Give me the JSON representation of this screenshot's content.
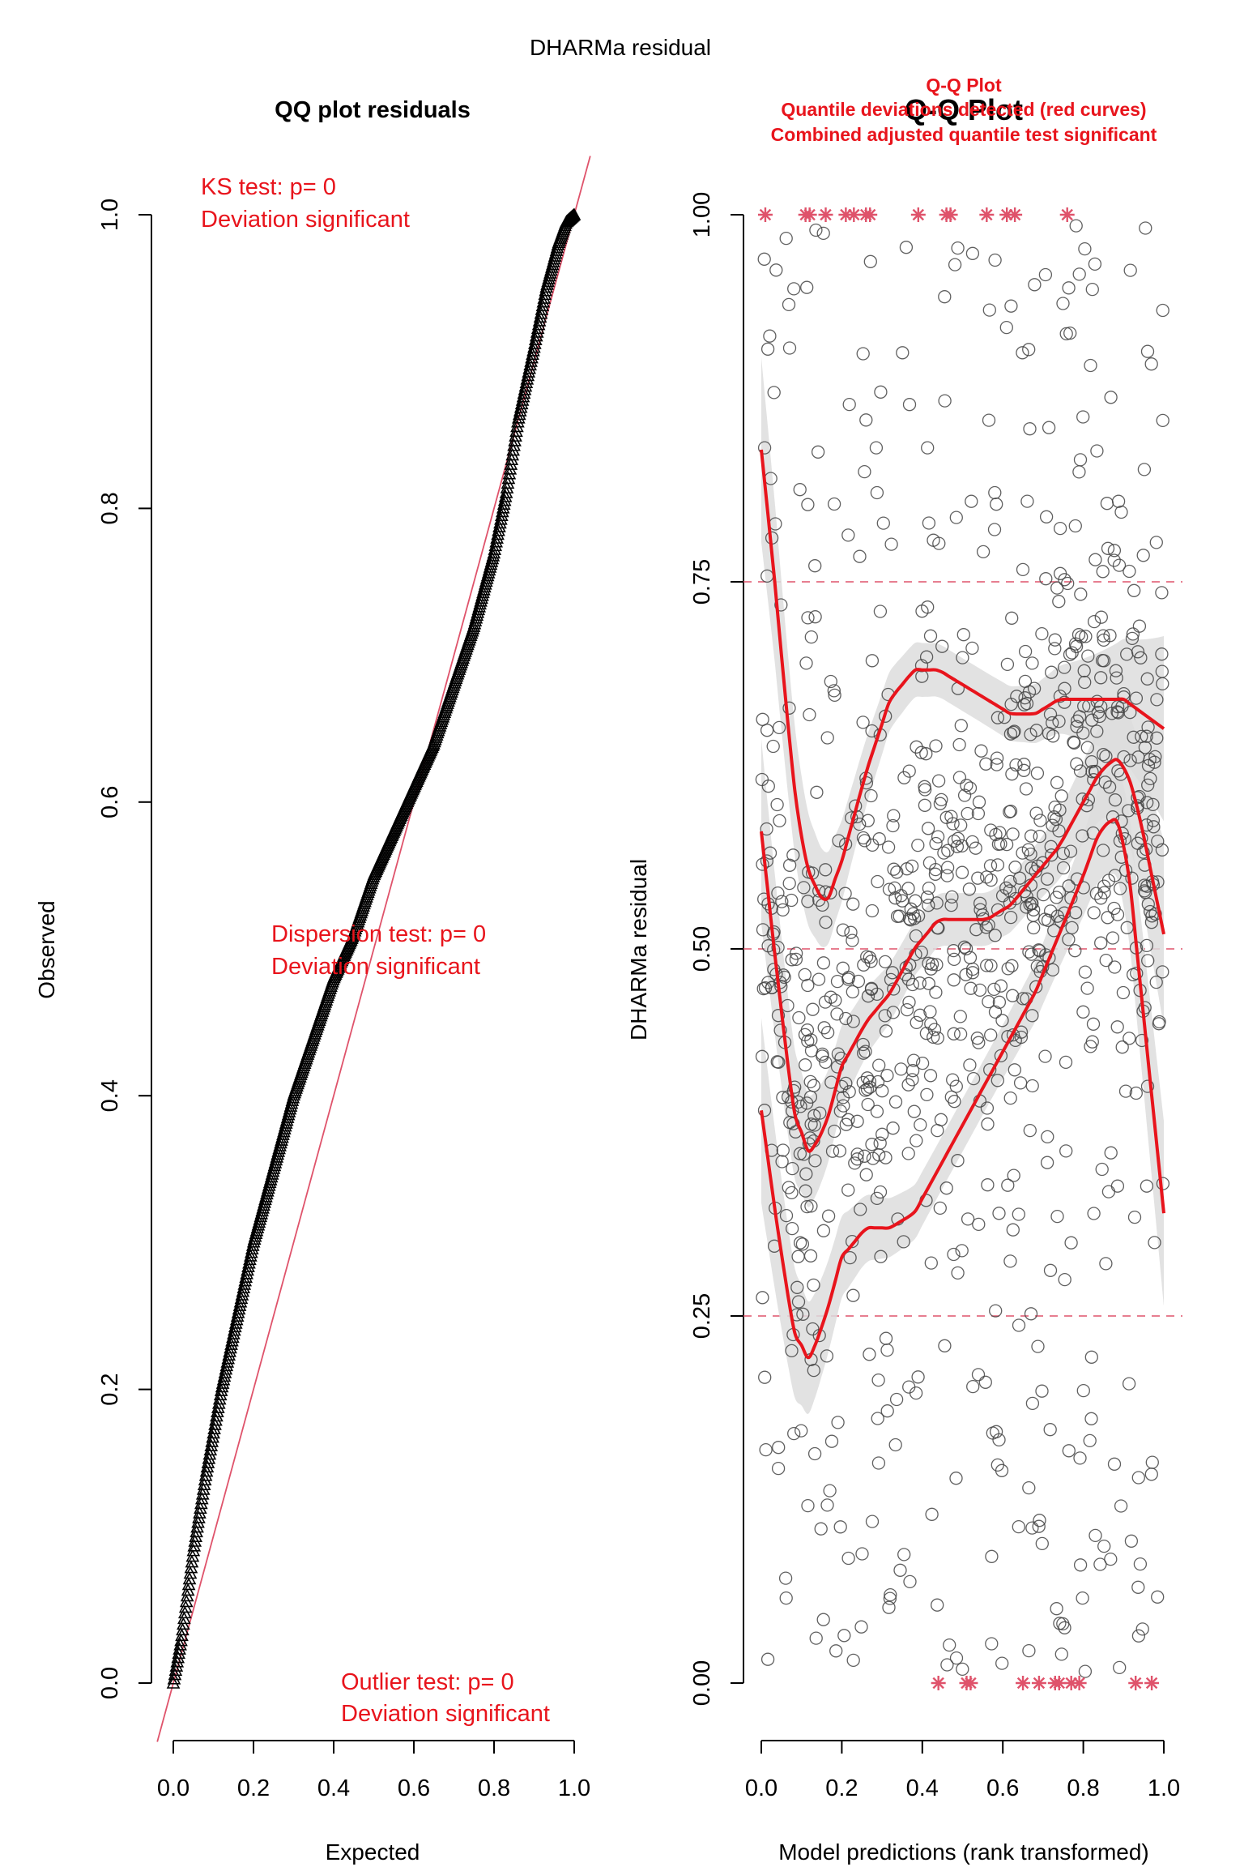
{
  "page_title": "DHARMa residual",
  "colors": {
    "red": "#E8141C",
    "pink": "#DF536B",
    "band": "#DDDDDD",
    "dark": "#000000"
  },
  "chart_data": [
    {
      "type": "scatter",
      "title": "QQ plot residuals",
      "xlabel": "Expected",
      "ylabel": "Observed",
      "xlim": [
        0,
        1
      ],
      "ylim": [
        0,
        1
      ],
      "xticks": [
        "0.0",
        "0.2",
        "0.4",
        "0.6",
        "0.8",
        "1.0"
      ],
      "yticks": [
        "0.0",
        "0.2",
        "0.4",
        "0.6",
        "0.8",
        "1.0"
      ],
      "reference_line": "y = x",
      "qq_curve": {
        "x": [
          0.0,
          0.02,
          0.05,
          0.08,
          0.12,
          0.16,
          0.2,
          0.25,
          0.3,
          0.35,
          0.4,
          0.45,
          0.5,
          0.55,
          0.6,
          0.65,
          0.7,
          0.75,
          0.8,
          0.83,
          0.86,
          0.9,
          0.93,
          0.96,
          0.98,
          1.0
        ],
        "y": [
          0.0,
          0.03,
          0.09,
          0.14,
          0.2,
          0.25,
          0.3,
          0.35,
          0.4,
          0.44,
          0.48,
          0.51,
          0.55,
          0.58,
          0.61,
          0.64,
          0.68,
          0.72,
          0.77,
          0.81,
          0.86,
          0.91,
          0.95,
          0.98,
          0.995,
          1.0
        ]
      },
      "annotations": [
        {
          "line1": "KS test: p= 0",
          "line2": "Deviation  significant"
        },
        {
          "line1": "Dispersion test: p= 0",
          "line2": "Deviation  significant"
        },
        {
          "line1": "Outlier test: p= 0",
          "line2": "Deviation  significant"
        }
      ]
    },
    {
      "type": "scatter",
      "title": "Q-Q Plot",
      "subtitle": "Quantile deviations detected (red curves)",
      "subtitle2": "Combined adjusted quantile test significant",
      "background_title": "Q-Q Plot",
      "xlabel": "Model predictions (rank transformed)",
      "ylabel": "DHARMa residual",
      "xlim": [
        0,
        1
      ],
      "ylim": [
        0,
        1
      ],
      "xticks": [
        "0.0",
        "0.2",
        "0.4",
        "0.6",
        "0.8",
        "1.0"
      ],
      "yticks": [
        "0.00",
        "0.25",
        "0.50",
        "0.75",
        "1.00"
      ],
      "reference_lines": [
        0.25,
        0.5,
        0.75
      ],
      "n_points": 1000,
      "quantile_curves": [
        {
          "quantile": 0.25,
          "x": [
            0.0,
            0.04,
            0.08,
            0.12,
            0.16,
            0.2,
            0.26,
            0.32,
            0.38,
            0.44,
            0.5,
            0.56,
            0.62,
            0.68,
            0.74,
            0.8,
            0.84,
            0.88,
            0.91,
            0.94,
            0.97,
            1.0
          ],
          "y": [
            0.39,
            0.31,
            0.24,
            0.22,
            0.25,
            0.29,
            0.31,
            0.31,
            0.32,
            0.35,
            0.38,
            0.41,
            0.44,
            0.47,
            0.51,
            0.55,
            0.58,
            0.59,
            0.56,
            0.48,
            0.4,
            0.32
          ]
        },
        {
          "quantile": 0.5,
          "x": [
            0.0,
            0.04,
            0.08,
            0.12,
            0.16,
            0.2,
            0.26,
            0.32,
            0.38,
            0.44,
            0.5,
            0.56,
            0.62,
            0.68,
            0.74,
            0.8,
            0.84,
            0.88,
            0.91,
            0.94,
            0.97,
            1.0
          ],
          "y": [
            0.58,
            0.48,
            0.39,
            0.36,
            0.38,
            0.42,
            0.45,
            0.47,
            0.5,
            0.52,
            0.52,
            0.52,
            0.53,
            0.55,
            0.57,
            0.6,
            0.62,
            0.63,
            0.62,
            0.59,
            0.55,
            0.51
          ]
        },
        {
          "quantile": 0.75,
          "x": [
            0.0,
            0.03,
            0.06,
            0.09,
            0.12,
            0.16,
            0.2,
            0.26,
            0.32,
            0.38,
            0.44,
            0.5,
            0.56,
            0.62,
            0.68,
            0.74,
            0.8,
            0.85,
            0.9,
            0.95,
            1.0
          ],
          "y": [
            0.84,
            0.76,
            0.67,
            0.59,
            0.55,
            0.53,
            0.56,
            0.62,
            0.67,
            0.69,
            0.69,
            0.68,
            0.67,
            0.66,
            0.66,
            0.67,
            0.67,
            0.67,
            0.67,
            0.66,
            0.65
          ]
        }
      ],
      "outliers_top_x": [
        0.01,
        0.11,
        0.12,
        0.16,
        0.21,
        0.23,
        0.26,
        0.27,
        0.39,
        0.46,
        0.47,
        0.56,
        0.61,
        0.63,
        0.76
      ],
      "outliers_bottom_x": [
        0.44,
        0.51,
        0.52,
        0.65,
        0.69,
        0.73,
        0.74,
        0.77,
        0.79,
        0.93,
        0.97
      ]
    }
  ]
}
